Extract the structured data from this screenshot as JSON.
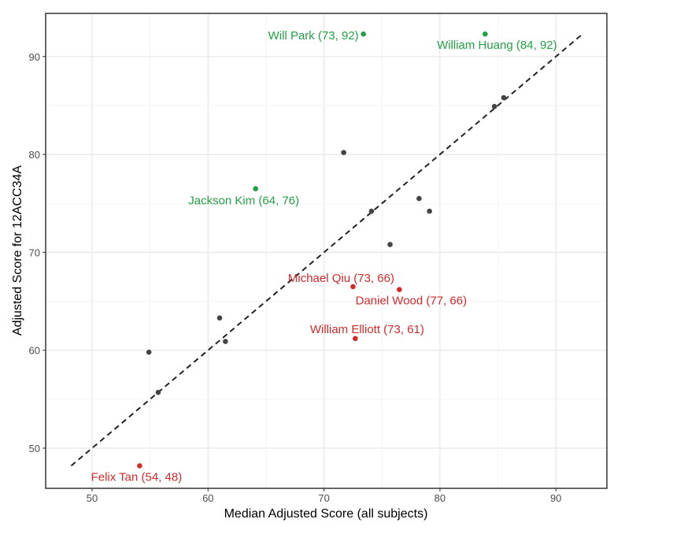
{
  "chart_data": {
    "type": "scatter",
    "title": "",
    "xlabel": "Median Adjusted Score (all subjects)",
    "ylabel": "Adjusted Score for 12ACC34A",
    "xlim": [
      46,
      95
    ],
    "ylim": [
      46,
      94
    ],
    "xticks": [
      "50",
      "60",
      "70",
      "80",
      "90"
    ],
    "yticks": [
      "50",
      "60",
      "70",
      "80",
      "90"
    ],
    "grid": true,
    "reference_line": {
      "type": "identity",
      "style": "dashed",
      "from": 48.2,
      "to": 92.2
    },
    "colors": {
      "neutral": "#444444",
      "above": "#22a046",
      "below": "#d42a2a"
    },
    "points": [
      {
        "x": 73.4,
        "y": 92.3,
        "group": "above",
        "label": "Will Park (73, 92)"
      },
      {
        "x": 83.9,
        "y": 92.3,
        "group": "above",
        "label": "William Huang (84, 92)"
      },
      {
        "x": 64.1,
        "y": 76.5,
        "group": "above",
        "label": "Jackson Kim (64, 76)"
      },
      {
        "x": 72.5,
        "y": 66.5,
        "group": "below",
        "label": "Michael Qiu (73, 66)"
      },
      {
        "x": 76.5,
        "y": 66.2,
        "group": "below",
        "label": "Daniel Wood (77, 66)"
      },
      {
        "x": 72.7,
        "y": 61.2,
        "group": "below",
        "label": "William Elliott (73, 61)"
      },
      {
        "x": 54.1,
        "y": 48.2,
        "group": "below",
        "label": "Felix Tan (54, 48)"
      },
      {
        "x": 85.5,
        "y": 85.8,
        "group": "neutral"
      },
      {
        "x": 84.7,
        "y": 84.9,
        "group": "neutral"
      },
      {
        "x": 71.7,
        "y": 80.2,
        "group": "neutral"
      },
      {
        "x": 74.1,
        "y": 74.2,
        "group": "neutral"
      },
      {
        "x": 78.2,
        "y": 75.5,
        "group": "neutral"
      },
      {
        "x": 79.1,
        "y": 74.2,
        "group": "neutral"
      },
      {
        "x": 75.7,
        "y": 70.8,
        "group": "neutral"
      },
      {
        "x": 61.0,
        "y": 63.3,
        "group": "neutral"
      },
      {
        "x": 61.5,
        "y": 60.9,
        "group": "neutral"
      },
      {
        "x": 54.9,
        "y": 59.8,
        "group": "neutral"
      },
      {
        "x": 55.7,
        "y": 55.7,
        "group": "neutral"
      }
    ]
  }
}
